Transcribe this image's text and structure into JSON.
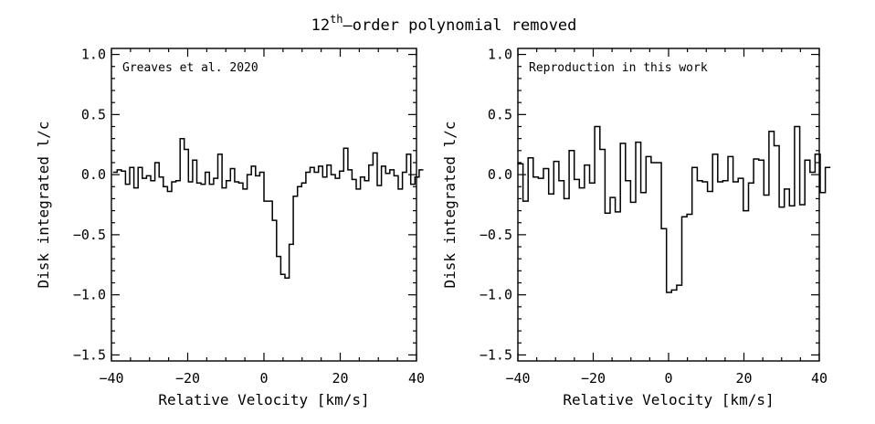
{
  "figure": {
    "title": {
      "prefix": "12",
      "superscript": "th",
      "suffix": "–order polynomial removed"
    }
  },
  "chart_data": [
    {
      "type": "line",
      "style": "step",
      "annotation": "Greaves et al. 2020",
      "title": "",
      "xlabel": "Relative Velocity [km/s]",
      "ylabel": "Disk integrated l/c",
      "xlim": [
        -40,
        40
      ],
      "ylim": [
        -1.55,
        1.05
      ],
      "xticks": [
        -40,
        -20,
        0,
        20,
        40
      ],
      "yticks": [
        -1.5,
        -1.0,
        -0.5,
        0.0,
        0.5,
        1.0
      ],
      "xtick_labels": [
        "−40",
        "−20",
        "0",
        "20",
        "40"
      ],
      "ytick_labels": [
        "−1.5",
        "−1.0",
        "−0.5",
        "0.0",
        "0.5",
        "1.0"
      ],
      "x_step": 1.1,
      "x_start": -39.6,
      "values": [
        0.02,
        0.04,
        0.03,
        -0.08,
        0.06,
        -0.11,
        0.06,
        -0.03,
        -0.01,
        -0.05,
        0.1,
        -0.02,
        -0.1,
        -0.14,
        -0.06,
        -0.05,
        0.3,
        0.21,
        -0.06,
        0.12,
        -0.07,
        -0.08,
        0.02,
        -0.08,
        -0.03,
        0.17,
        -0.11,
        -0.05,
        0.05,
        -0.06,
        -0.07,
        -0.12,
        0.0,
        0.07,
        -0.01,
        0.02,
        -0.22,
        -0.22,
        -0.38,
        -0.68,
        -0.83,
        -0.86,
        -0.58,
        -0.18,
        -0.1,
        -0.07,
        0.02,
        0.06,
        0.02,
        0.07,
        -0.02,
        0.08,
        0.0,
        -0.03,
        0.03,
        0.22,
        0.04,
        -0.04,
        -0.12,
        -0.02,
        -0.05,
        0.08,
        0.18,
        -0.09,
        0.07,
        0.01,
        0.04,
        -0.01,
        -0.12,
        0.02,
        0.17,
        -0.08,
        -0.02,
        0.04
      ]
    },
    {
      "type": "line",
      "style": "step",
      "annotation": "Reproduction in this work",
      "title": "",
      "xlabel": "Relative Velocity [km/s]",
      "ylabel": "Disk integrated l/c",
      "xlim": [
        -40,
        40
      ],
      "ylim": [
        -1.55,
        1.05
      ],
      "xticks": [
        -40,
        -20,
        0,
        20,
        40
      ],
      "yticks": [
        -1.5,
        -1.0,
        -0.5,
        0.0,
        0.5,
        1.0
      ],
      "xtick_labels": [
        "−40",
        "−20",
        "0",
        "20",
        "40"
      ],
      "ytick_labels": [
        "−1.5",
        "−1.0",
        "−0.5",
        "0.0",
        "0.5",
        "1.0"
      ],
      "x_step": 1.36,
      "x_start": -40.0,
      "values": [
        0.09,
        -0.22,
        0.14,
        -0.02,
        -0.03,
        0.05,
        -0.16,
        0.11,
        -0.05,
        -0.2,
        0.2,
        -0.04,
        -0.11,
        0.08,
        -0.07,
        0.4,
        0.21,
        -0.32,
        -0.19,
        -0.31,
        0.26,
        -0.05,
        -0.23,
        0.27,
        -0.15,
        0.15,
        0.1,
        0.1,
        -0.45,
        -0.98,
        -0.96,
        -0.92,
        -0.35,
        -0.33,
        0.06,
        -0.05,
        -0.06,
        -0.14,
        0.17,
        -0.06,
        -0.05,
        0.15,
        -0.06,
        -0.03,
        -0.3,
        -0.07,
        0.13,
        0.12,
        -0.17,
        0.36,
        0.24,
        -0.27,
        -0.12,
        -0.26,
        0.4,
        -0.25,
        0.12,
        0.02,
        0.17,
        -0.15,
        0.06
      ]
    }
  ]
}
